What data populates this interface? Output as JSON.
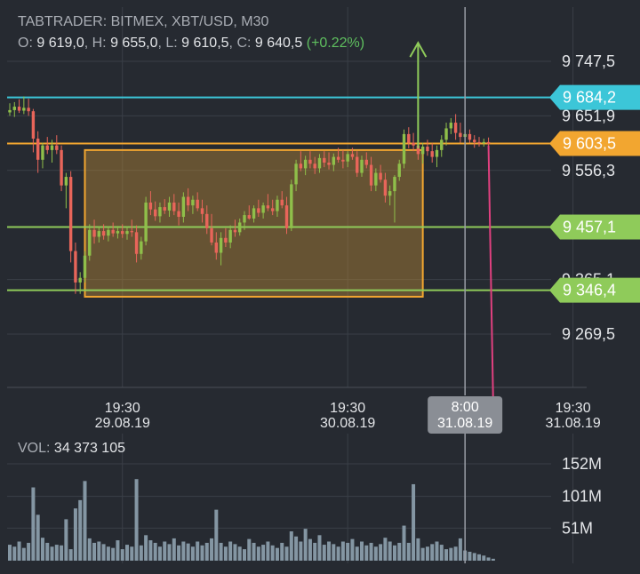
{
  "header": {
    "title": "TABTRADER: BITMEX, XBT/USD, M30",
    "o_label": "O:",
    "o_value": "9 619,0",
    "h_label": "H:",
    "h_value": "9 655,0",
    "l_label": "L:",
    "l_value": "9 610,5",
    "c_label": "C:",
    "c_value": "9 640,5",
    "change": "(+0.22%)"
  },
  "volume_header": {
    "label": "VOL:",
    "value": "34 373 105"
  },
  "colors": {
    "background": "#262a31",
    "grid": "#3a3f47",
    "up": "#8fbf4a",
    "down": "#e8655a",
    "cyan": "#3cc6d8",
    "orange": "#f2a630",
    "green": "#8fcb5a",
    "magenta": "#e0407f",
    "volume": "#8496a3",
    "crosshair": "#9a9ea6"
  },
  "price_levels": [
    {
      "value": "9 747,5",
      "price": 9747.5
    },
    {
      "value": "9 651,9",
      "price": 9651.9
    },
    {
      "value": "9 556,3",
      "price": 9556.3
    },
    {
      "value": "9 365,1",
      "price": 9365.1
    },
    {
      "value": "9 269,5",
      "price": 9269.5
    }
  ],
  "horizontal_lines": [
    {
      "label": "9 684,2",
      "price": 9684.2,
      "color": "#3cc6d8"
    },
    {
      "label": "9 603,5",
      "price": 9603.5,
      "color": "#f2a630"
    },
    {
      "label": "9 457,1",
      "price": 9457.1,
      "color": "#8fcb5a"
    },
    {
      "label": "9 346,4",
      "price": 9346.4,
      "color": "#8fcb5a"
    }
  ],
  "time_labels": [
    {
      "time": "19:30",
      "date": "29.08.19",
      "bar": 24
    },
    {
      "time": "19:30",
      "date": "30.08.19",
      "bar": 72
    },
    {
      "time": "19:30",
      "date": "31.08.19",
      "bar": 120
    }
  ],
  "crosshair": {
    "time": "8:00",
    "date": "31.08.19",
    "bar": 97
  },
  "volume_levels": [
    {
      "value": "152M",
      "vol": 152
    },
    {
      "value": "101M",
      "vol": 101
    },
    {
      "value": "51M",
      "vol": 51
    }
  ],
  "chart_data": {
    "type": "candlestick",
    "title": "TABTRADER: BITMEX, XBT/USD, M30",
    "ylim": [
      9200,
      9800
    ],
    "volume_ylim": [
      0,
      190
    ],
    "range_box": {
      "bar_start": 16,
      "bar_end": 88,
      "price_high": 9592,
      "price_low": 9335
    },
    "up_arrow": {
      "bar": 87,
      "from_price": 9595,
      "to_price": 9780
    },
    "down_line": {
      "bar_start": 102,
      "price_start": 9600,
      "bar_end": 103,
      "price_end": 9150
    },
    "candles": [
      [
        9658,
        9674,
        9652,
        9662
      ],
      [
        9662,
        9676,
        9650,
        9668
      ],
      [
        9668,
        9681,
        9657,
        9661
      ],
      [
        9661,
        9686,
        9655,
        9666
      ],
      [
        9666,
        9682,
        9652,
        9660
      ],
      [
        9660,
        9664,
        9588,
        9612
      ],
      [
        9612,
        9625,
        9552,
        9575
      ],
      [
        9575,
        9605,
        9560,
        9600
      ],
      [
        9600,
        9615,
        9585,
        9592
      ],
      [
        9592,
        9610,
        9570,
        9600
      ],
      [
        9600,
        9618,
        9585,
        9592
      ],
      [
        9592,
        9600,
        9520,
        9530
      ],
      [
        9530,
        9552,
        9490,
        9545
      ],
      [
        9545,
        9555,
        9395,
        9415
      ],
      [
        9415,
        9430,
        9340,
        9360
      ],
      [
        9360,
        9378,
        9340,
        9368
      ],
      [
        9368,
        9415,
        9360,
        9407
      ],
      [
        9407,
        9462,
        9398,
        9452
      ],
      [
        9452,
        9470,
        9428,
        9440
      ],
      [
        9440,
        9458,
        9430,
        9450
      ],
      [
        9450,
        9462,
        9435,
        9442
      ],
      [
        9442,
        9458,
        9432,
        9452
      ],
      [
        9452,
        9465,
        9440,
        9446
      ],
      [
        9446,
        9459,
        9437,
        9450
      ],
      [
        9450,
        9462,
        9438,
        9445
      ],
      [
        9445,
        9458,
        9435,
        9450
      ],
      [
        9450,
        9470,
        9440,
        9448
      ],
      [
        9448,
        9460,
        9395,
        9410
      ],
      [
        9410,
        9440,
        9400,
        9432
      ],
      [
        9432,
        9510,
        9425,
        9500
      ],
      [
        9500,
        9520,
        9478,
        9488
      ],
      [
        9488,
        9502,
        9468,
        9476
      ],
      [
        9476,
        9500,
        9465,
        9492
      ],
      [
        9492,
        9506,
        9480,
        9486
      ],
      [
        9486,
        9510,
        9475,
        9500
      ],
      [
        9500,
        9515,
        9478,
        9485
      ],
      [
        9485,
        9500,
        9460,
        9475
      ],
      [
        9475,
        9518,
        9465,
        9510
      ],
      [
        9510,
        9525,
        9485,
        9495
      ],
      [
        9495,
        9512,
        9480,
        9505
      ],
      [
        9505,
        9518,
        9485,
        9490
      ],
      [
        9490,
        9505,
        9465,
        9480
      ],
      [
        9480,
        9495,
        9445,
        9455
      ],
      [
        9455,
        9480,
        9425,
        9430
      ],
      [
        9430,
        9448,
        9400,
        9412
      ],
      [
        9412,
        9448,
        9390,
        9438
      ],
      [
        9438,
        9455,
        9422,
        9430
      ],
      [
        9430,
        9460,
        9420,
        9452
      ],
      [
        9452,
        9470,
        9440,
        9448
      ],
      [
        9448,
        9472,
        9442,
        9465
      ],
      [
        9465,
        9485,
        9452,
        9478
      ],
      [
        9478,
        9495,
        9470,
        9472
      ],
      [
        9472,
        9495,
        9465,
        9490
      ],
      [
        9490,
        9505,
        9475,
        9482
      ],
      [
        9482,
        9500,
        9472,
        9495
      ],
      [
        9495,
        9515,
        9485,
        9490
      ],
      [
        9490,
        9505,
        9478,
        9485
      ],
      [
        9485,
        9512,
        9475,
        9505
      ],
      [
        9505,
        9520,
        9490,
        9495
      ],
      [
        9495,
        9510,
        9445,
        9455
      ],
      [
        9455,
        9540,
        9450,
        9532
      ],
      [
        9532,
        9575,
        9520,
        9568
      ],
      [
        9568,
        9590,
        9555,
        9560
      ],
      [
        9560,
        9582,
        9548,
        9575
      ],
      [
        9575,
        9590,
        9560,
        9568
      ],
      [
        9568,
        9580,
        9550,
        9560
      ],
      [
        9560,
        9585,
        9552,
        9578
      ],
      [
        9578,
        9590,
        9562,
        9570
      ],
      [
        9570,
        9588,
        9558,
        9566
      ],
      [
        9566,
        9586,
        9555,
        9580
      ],
      [
        9580,
        9596,
        9570,
        9575
      ],
      [
        9575,
        9592,
        9560,
        9572
      ],
      [
        9572,
        9590,
        9562,
        9585
      ],
      [
        9585,
        9596,
        9575,
        9580
      ],
      [
        9580,
        9590,
        9545,
        9552
      ],
      [
        9552,
        9582,
        9545,
        9575
      ],
      [
        9575,
        9588,
        9560,
        9566
      ],
      [
        9566,
        9580,
        9520,
        9530
      ],
      [
        9530,
        9560,
        9520,
        9552
      ],
      [
        9552,
        9566,
        9535,
        9540
      ],
      [
        9540,
        9552,
        9500,
        9512
      ],
      [
        9512,
        9530,
        9495,
        9520
      ],
      [
        9520,
        9548,
        9465,
        9545
      ],
      [
        9545,
        9575,
        9538,
        9568
      ],
      [
        9568,
        9628,
        9560,
        9620
      ],
      [
        9620,
        9632,
        9595,
        9605
      ],
      [
        9605,
        9622,
        9590,
        9600
      ],
      [
        9600,
        9612,
        9575,
        9585
      ],
      [
        9585,
        9605,
        9568,
        9598
      ],
      [
        9598,
        9610,
        9582,
        9590
      ],
      [
        9590,
        9604,
        9570,
        9580
      ],
      [
        9580,
        9600,
        9562,
        9592
      ],
      [
        9592,
        9618,
        9580,
        9610
      ],
      [
        9610,
        9640,
        9600,
        9630
      ],
      [
        9630,
        9648,
        9620,
        9640
      ],
      [
        9640,
        9655,
        9610,
        9622
      ],
      [
        9622,
        9640,
        9605,
        9615
      ],
      [
        9615,
        9630,
        9600,
        9620
      ],
      [
        9620,
        9628,
        9605,
        9610
      ],
      [
        9610,
        9618,
        9596,
        9606
      ],
      [
        9606,
        9615,
        9598,
        9604
      ],
      [
        9604,
        9612,
        9598,
        9606
      ],
      [
        9606,
        9614,
        9598,
        9603
      ]
    ],
    "volume": [
      25,
      22,
      30,
      20,
      28,
      115,
      72,
      36,
      28,
      22,
      25,
      24,
      65,
      18,
      82,
      95,
      125,
      35,
      28,
      30,
      26,
      22,
      20,
      32,
      18,
      25,
      22,
      128,
      24,
      40,
      32,
      28,
      22,
      30,
      26,
      35,
      24,
      30,
      27,
      22,
      30,
      24,
      28,
      35,
      80,
      28,
      22,
      30,
      26,
      22,
      18,
      34,
      28,
      22,
      25,
      30,
      24,
      20,
      28,
      22,
      46,
      38,
      30,
      50,
      34,
      28,
      40,
      25,
      30,
      26,
      22,
      30,
      28,
      34,
      22,
      30,
      24,
      28,
      22,
      26,
      36,
      30,
      24,
      28,
      55,
      28,
      120,
      35,
      20,
      22,
      26,
      30,
      25,
      18,
      20,
      22,
      35,
      16,
      14,
      12,
      10,
      8,
      5,
      3
    ]
  }
}
